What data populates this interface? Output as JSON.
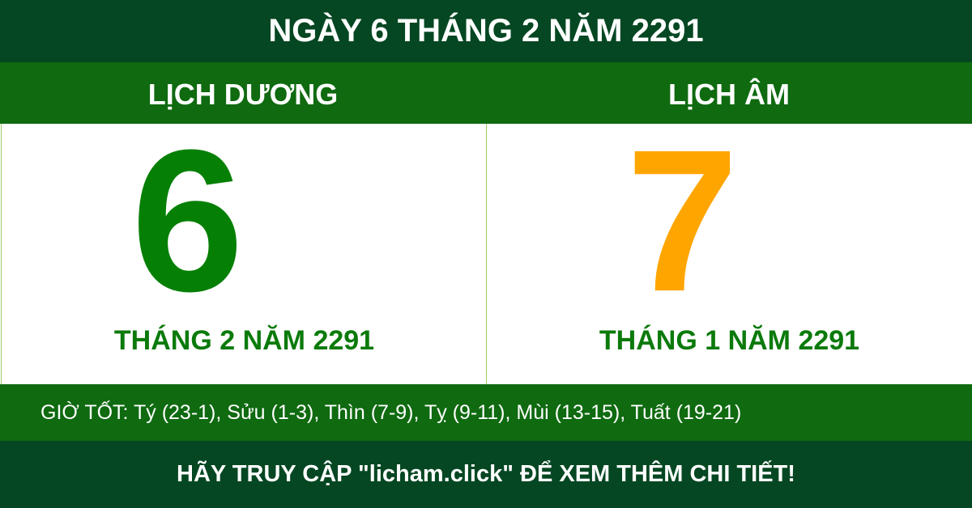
{
  "title": "NGÀY 6 THÁNG 2 NĂM 2291",
  "solar": {
    "label": "LỊCH DƯƠNG",
    "day": "6",
    "month_year": "THÁNG 2 NĂM 2291",
    "color": "#058005"
  },
  "lunar": {
    "label": "LỊCH ÂM",
    "day": "7",
    "month_year": "THÁNG 1 NĂM 2291",
    "color": "#ffa500"
  },
  "good_hours": "GIỜ TỐT: Tý (23-1), Sửu (1-3), Thìn (7-9), Tỵ (9-11), Mùi (13-15), Tuất (19-21)",
  "footer": "HÃY TRUY CẬP \"licham.click\" ĐỂ XEM THÊM CHI TIẾT!"
}
